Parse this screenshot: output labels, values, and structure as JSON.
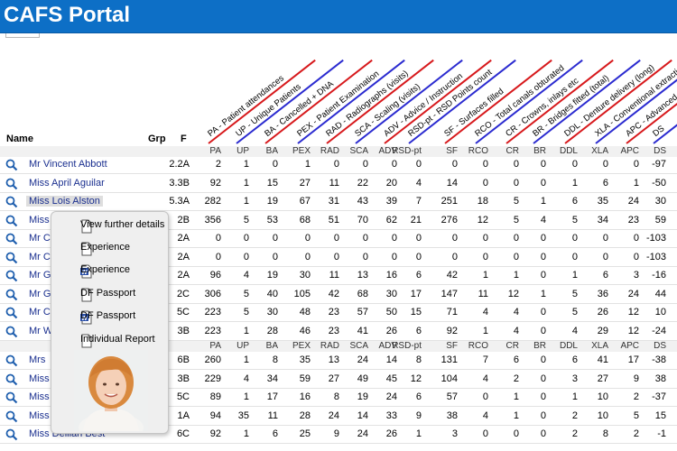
{
  "app": {
    "title": "CAFS Portal"
  },
  "headers": {
    "name": "Name",
    "grp": "Grp",
    "f": "F"
  },
  "columns": [
    "PA",
    "UP",
    "BA",
    "PEX",
    "RAD",
    "SCA",
    "ADV",
    "RSD-pt",
    "SF",
    "RCO",
    "CR",
    "BR",
    "DDL",
    "XLA",
    "APC",
    "DS"
  ],
  "diagonal_labels": [
    "PA - Patient attendances",
    "UP - Unique Patients",
    "BA - Cancelled + DNA",
    "PEX - Patient Examination",
    "RAD - Radiographs (visits)",
    "SCA - Scaling (visits)",
    "ADV - Advice / Instruction",
    "RSD-pt - RSD Points count",
    "SF - Surfaces filled",
    "RCO - Total canals obturated",
    "CR - Crowns, inlays etc",
    "BR - Bridges fitted (total)",
    "DDL - Denture delivery (long)",
    "XLA - Conventional extractions",
    "APC - Advanced perio care",
    "DS"
  ],
  "line_colors": [
    "#d7191c",
    "#2b2bd0"
  ],
  "rows_group1": [
    {
      "name": "Mr Vincent Abbott",
      "grp": "2.2A",
      "v": [
        "2",
        "1",
        "0",
        "1",
        "0",
        "0",
        "0",
        "0",
        "0",
        "0",
        "0",
        "0",
        "0",
        "0",
        "0",
        "-97"
      ]
    },
    {
      "name": "Miss April Aguilar",
      "grp": "3.3B",
      "v": [
        "92",
        "1",
        "15",
        "27",
        "11",
        "22",
        "20",
        "4",
        "14",
        "0",
        "0",
        "0",
        "1",
        "6",
        "1",
        "-50"
      ]
    },
    {
      "name": "Miss Lois Alston",
      "grp": "5.3A",
      "v": [
        "282",
        "1",
        "19",
        "67",
        "31",
        "43",
        "39",
        "7",
        "251",
        "18",
        "5",
        "1",
        "6",
        "35",
        "24",
        "30"
      ]
    },
    {
      "name": "Miss",
      "grp": "2B",
      "v": [
        "356",
        "5",
        "53",
        "68",
        "51",
        "70",
        "62",
        "21",
        "276",
        "12",
        "5",
        "4",
        "5",
        "34",
        "23",
        "59"
      ]
    },
    {
      "name": "Mr C",
      "grp": "2A",
      "v": [
        "0",
        "0",
        "0",
        "0",
        "0",
        "0",
        "0",
        "0",
        "0",
        "0",
        "0",
        "0",
        "0",
        "0",
        "0",
        "-103"
      ]
    },
    {
      "name": "Mr C",
      "grp": "2A",
      "v": [
        "0",
        "0",
        "0",
        "0",
        "0",
        "0",
        "0",
        "0",
        "0",
        "0",
        "0",
        "0",
        "0",
        "0",
        "0",
        "-103"
      ]
    },
    {
      "name": "Mr G",
      "grp": "2A",
      "v": [
        "96",
        "4",
        "19",
        "30",
        "11",
        "13",
        "16",
        "6",
        "42",
        "1",
        "1",
        "0",
        "1",
        "6",
        "3",
        "-16"
      ]
    },
    {
      "name": "Mr G",
      "grp": "2C",
      "v": [
        "306",
        "5",
        "40",
        "105",
        "42",
        "68",
        "30",
        "17",
        "147",
        "11",
        "12",
        "1",
        "5",
        "36",
        "24",
        "44"
      ]
    },
    {
      "name": "Mr C",
      "grp": "5C",
      "v": [
        "223",
        "5",
        "30",
        "48",
        "23",
        "57",
        "50",
        "15",
        "71",
        "4",
        "4",
        "0",
        "5",
        "26",
        "12",
        "10"
      ]
    },
    {
      "name": "Mr W",
      "grp": "3B",
      "v": [
        "223",
        "1",
        "28",
        "46",
        "23",
        "41",
        "26",
        "6",
        "92",
        "1",
        "4",
        "0",
        "4",
        "29",
        "12",
        "-24"
      ]
    }
  ],
  "rows_group2": [
    {
      "name": "Mrs",
      "grp": "6B",
      "v": [
        "260",
        "1",
        "8",
        "35",
        "13",
        "24",
        "14",
        "8",
        "131",
        "7",
        "6",
        "0",
        "6",
        "41",
        "17",
        "-38"
      ]
    },
    {
      "name": "Miss",
      "grp": "3B",
      "v": [
        "229",
        "4",
        "34",
        "59",
        "27",
        "49",
        "45",
        "12",
        "104",
        "4",
        "2",
        "0",
        "3",
        "27",
        "9",
        "38"
      ]
    },
    {
      "name": "Miss",
      "grp": "5C",
      "v": [
        "89",
        "1",
        "17",
        "16",
        "8",
        "19",
        "24",
        "6",
        "57",
        "0",
        "1",
        "0",
        "1",
        "10",
        "2",
        "-37"
      ]
    },
    {
      "name": "Miss",
      "grp": "1A",
      "v": [
        "94",
        "35",
        "11",
        "28",
        "24",
        "14",
        "33",
        "9",
        "38",
        "4",
        "1",
        "0",
        "2",
        "10",
        "5",
        "15"
      ]
    },
    {
      "name": "Miss Delilah Best",
      "grp": "6C",
      "v": [
        "92",
        "1",
        "6",
        "25",
        "9",
        "24",
        "26",
        "1",
        "3",
        "0",
        "0",
        "0",
        "2",
        "8",
        "2",
        "-1"
      ]
    }
  ],
  "popup": {
    "items": [
      {
        "label": "View further details",
        "icon": "document-icon"
      },
      {
        "label": "Experience",
        "icon": "document-icon"
      },
      {
        "label": "Experience",
        "icon": "word-document-icon"
      },
      {
        "label": "DF Passport",
        "icon": "document-icon"
      },
      {
        "label": "DF Passport",
        "icon": "word-document-icon"
      },
      {
        "label": "Individual Report",
        "icon": "document-icon"
      }
    ]
  }
}
